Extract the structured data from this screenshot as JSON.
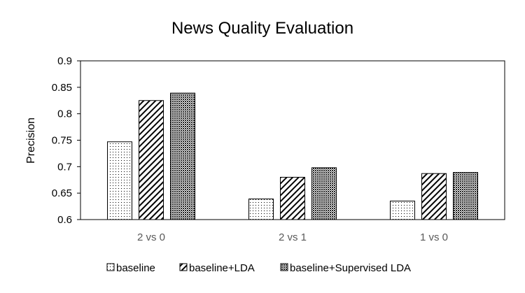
{
  "chart_data": {
    "type": "bar",
    "title": "News Quality Evaluation",
    "xlabel": "",
    "ylabel": "Precision",
    "ylim": [
      0.6,
      0.9
    ],
    "yticks": [
      "0.6",
      "0.65",
      "0.7",
      "0.75",
      "0.8",
      "0.85",
      "0.9"
    ],
    "categories": [
      "2 vs 0",
      "2 vs 1",
      "1 vs 0"
    ],
    "series": [
      {
        "name": "baseline",
        "values": [
          0.747,
          0.639,
          0.635
        ],
        "pattern": "dots"
      },
      {
        "name": "baseline+LDA",
        "values": [
          0.825,
          0.68,
          0.687
        ],
        "pattern": "diagonal"
      },
      {
        "name": "baseline+Supervised LDA",
        "values": [
          0.839,
          0.698,
          0.689
        ],
        "pattern": "crosshatch"
      }
    ],
    "grid": false,
    "legend_position": "bottom"
  },
  "colors": {
    "stroke": "#000000",
    "category_text": "#595959"
  }
}
